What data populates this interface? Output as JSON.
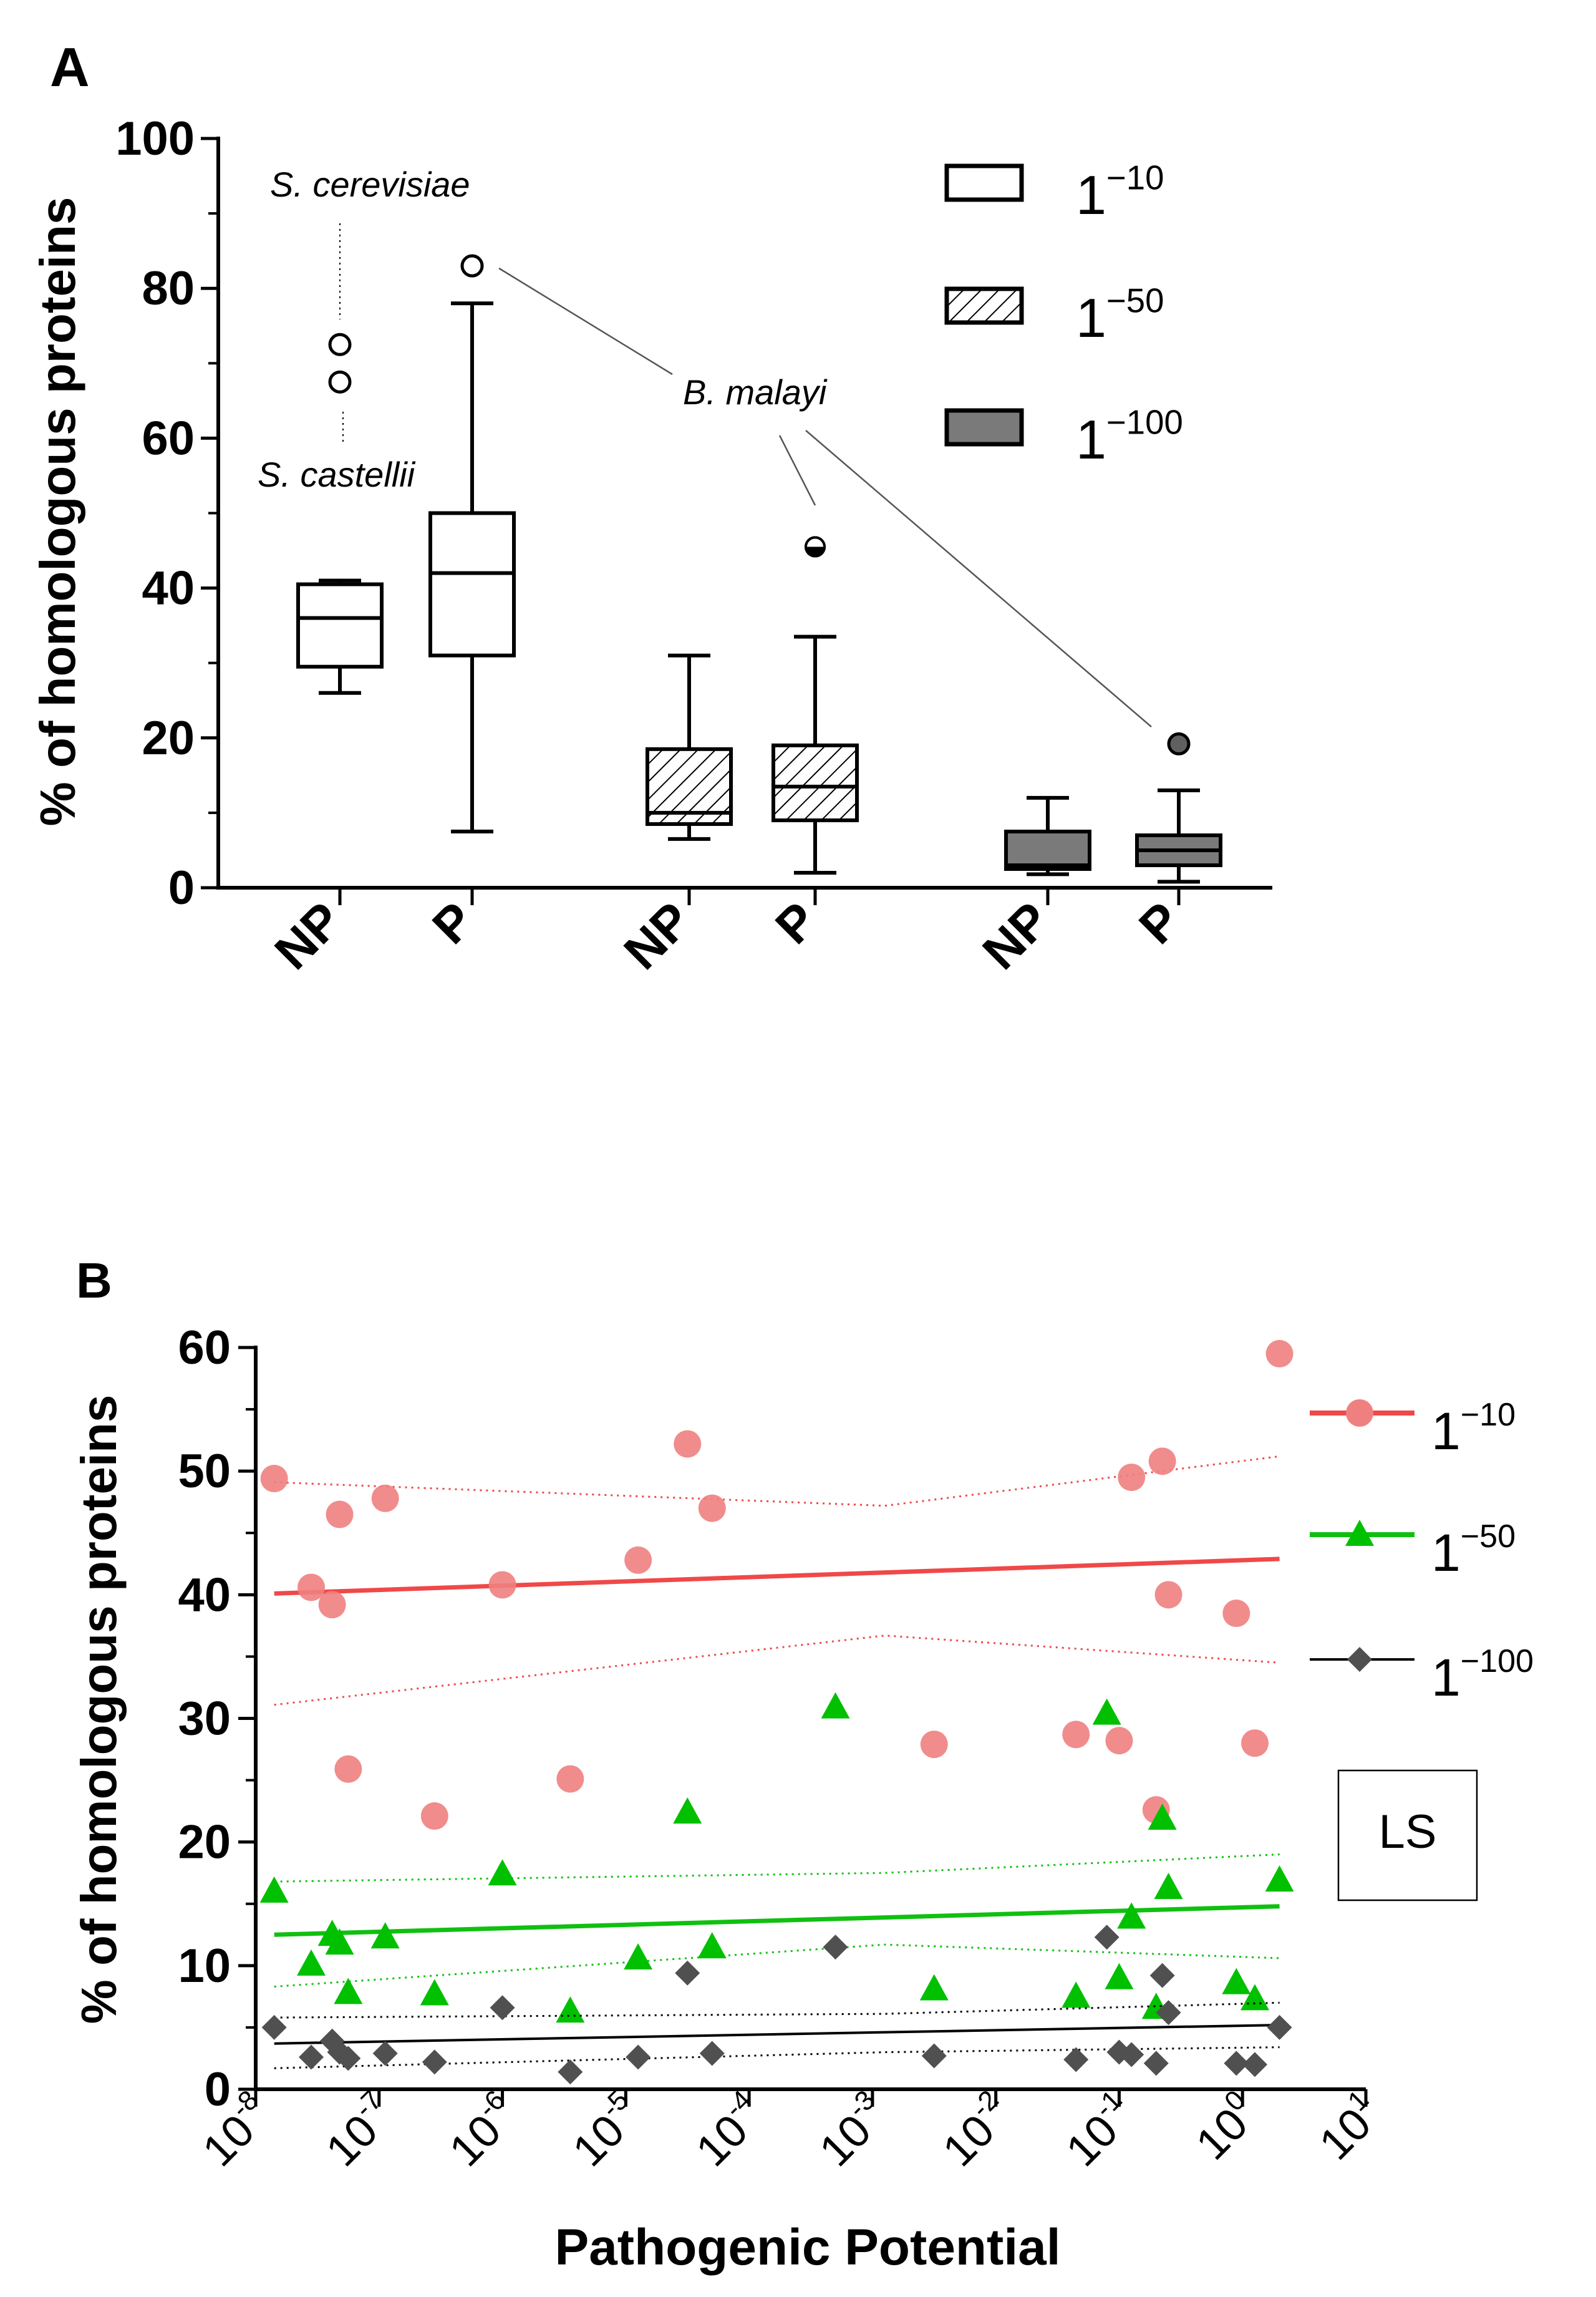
{
  "chart_data": [
    {
      "panel": "A",
      "type": "box",
      "ylabel": "% of homologous proteins",
      "ylim": [
        0,
        100
      ],
      "yticks": [
        "0",
        "20",
        "40",
        "60",
        "80",
        "100"
      ],
      "categories": [
        "NP",
        "P",
        "NP",
        "P",
        "NP",
        "P"
      ],
      "legend": [
        {
          "base": "1",
          "exp": "−10",
          "fill": "white"
        },
        {
          "base": "1",
          "exp": "−50",
          "fill": "hatched"
        },
        {
          "base": "1",
          "exp": "−100",
          "fill": "gray"
        }
      ],
      "boxes": [
        {
          "group": "NP",
          "threshold": "1^-10",
          "min": 26,
          "q1": 29.5,
          "median": 36,
          "q3": 40.5,
          "max": 41
        },
        {
          "group": "P",
          "threshold": "1^-10",
          "min": 7.5,
          "q1": 31,
          "median": 42,
          "q3": 50,
          "max": 78
        },
        {
          "group": "NP",
          "threshold": "1^-50",
          "min": 6.5,
          "q1": 8.5,
          "median": 10,
          "q3": 18.5,
          "max": 31
        },
        {
          "group": "P",
          "threshold": "1^-50",
          "min": 2,
          "q1": 9,
          "median": 13.5,
          "q3": 19,
          "max": 33.5
        },
        {
          "group": "NP",
          "threshold": "1^-100",
          "min": 1.8,
          "q1": 2.5,
          "median": 3,
          "q3": 7.5,
          "max": 12
        },
        {
          "group": "P",
          "threshold": "1^-100",
          "min": 0.8,
          "q1": 3,
          "median": 5,
          "q3": 7,
          "max": 13
        }
      ],
      "outliers": [
        {
          "box": 0,
          "value": 72.5,
          "style": "open"
        },
        {
          "box": 0,
          "value": 67.5,
          "style": "open"
        },
        {
          "box": 1,
          "value": 83,
          "style": "open"
        },
        {
          "box": 3,
          "value": 45.5,
          "style": "half"
        },
        {
          "box": 5,
          "value": 19.2,
          "style": "filled"
        }
      ],
      "annotations": [
        "S. cerevisiae",
        "S. castellii",
        "B. malayi"
      ]
    },
    {
      "panel": "B",
      "type": "scatter",
      "xscale": "log",
      "xlabel": "Pathogenic Potential",
      "ylabel": "% of homologous proteins",
      "ylim": [
        0,
        60
      ],
      "xlim_exp": [
        -8,
        1
      ],
      "yticks": [
        "0",
        "10",
        "20",
        "30",
        "40",
        "50",
        "60"
      ],
      "xticks": [
        {
          "base": "10",
          "exp": "-8"
        },
        {
          "base": "10",
          "exp": "-7"
        },
        {
          "base": "10",
          "exp": "-6"
        },
        {
          "base": "10",
          "exp": "-5"
        },
        {
          "base": "10",
          "exp": "-4"
        },
        {
          "base": "10",
          "exp": "-3"
        },
        {
          "base": "10",
          "exp": "-2"
        },
        {
          "base": "10",
          "exp": "-1"
        },
        {
          "base": "10",
          "exp": "0"
        },
        {
          "base": "10",
          "exp": "1"
        }
      ],
      "box_label": "LS",
      "series": [
        {
          "name": "1^-10",
          "base": "1",
          "exp": "−10",
          "marker": "circle",
          "color": "#f08080",
          "line_color": "#f04848",
          "points_log10x": [
            [
              -7.85,
              49.4
            ],
            [
              -7.55,
              40.6
            ],
            [
              -7.38,
              39.2
            ],
            [
              -7.32,
              46.5
            ],
            [
              -7.25,
              25.9
            ],
            [
              -6.95,
              47.8
            ],
            [
              -6.55,
              22.1
            ],
            [
              -6.0,
              40.8
            ],
            [
              -5.45,
              25.1
            ],
            [
              -4.9,
              42.8
            ],
            [
              -4.5,
              52.2
            ],
            [
              -4.3,
              47.0
            ],
            [
              -2.5,
              27.9
            ],
            [
              -1.35,
              28.7
            ],
            [
              -1.0,
              28.2
            ],
            [
              -0.9,
              49.5
            ],
            [
              -0.7,
              22.6
            ],
            [
              -0.65,
              50.8
            ],
            [
              -0.6,
              40.0
            ],
            [
              -0.05,
              38.5
            ],
            [
              0.1,
              28.0
            ],
            [
              0.3,
              59.5
            ]
          ],
          "fit": [
            [
              -7.85,
              40.1
            ],
            [
              0.3,
              42.9
            ]
          ],
          "ci_upper": [
            [
              -7.85,
              49.1
            ],
            [
              -2.9,
              47.2
            ],
            [
              0.3,
              51.2
            ]
          ],
          "ci_lower": [
            [
              -7.85,
              31.1
            ],
            [
              -2.9,
              36.7
            ],
            [
              0.3,
              34.5
            ]
          ]
        },
        {
          "name": "1^-50",
          "base": "1",
          "exp": "−50",
          "marker": "triangle",
          "color": "#00c000",
          "line_color": "#10c010",
          "points_log10x": [
            [
              -7.85,
              16.0
            ],
            [
              -7.55,
              10.1
            ],
            [
              -7.38,
              12.5
            ],
            [
              -7.32,
              11.8
            ],
            [
              -7.25,
              7.8
            ],
            [
              -6.95,
              12.3
            ],
            [
              -6.55,
              7.7
            ],
            [
              -6.0,
              17.4
            ],
            [
              -5.45,
              6.3
            ],
            [
              -4.9,
              10.6
            ],
            [
              -4.5,
              22.4
            ],
            [
              -4.3,
              11.5
            ],
            [
              -3.3,
              30.9
            ],
            [
              -2.5,
              8.1
            ],
            [
              -1.35,
              7.5
            ],
            [
              -1.1,
              30.4
            ],
            [
              -1.0,
              9.0
            ],
            [
              -0.9,
              13.9
            ],
            [
              -0.7,
              6.6
            ],
            [
              -0.65,
              21.9
            ],
            [
              -0.6,
              16.3
            ],
            [
              -0.05,
              8.6
            ],
            [
              0.1,
              7.3
            ],
            [
              0.3,
              16.9
            ]
          ],
          "fit": [
            [
              -7.85,
              12.5
            ],
            [
              0.3,
              14.8
            ]
          ],
          "ci_upper": [
            [
              -7.85,
              16.8
            ],
            [
              -2.9,
              17.5
            ],
            [
              0.3,
              19.0
            ]
          ],
          "ci_lower": [
            [
              -7.85,
              8.3
            ],
            [
              -2.9,
              11.7
            ],
            [
              0.3,
              10.6
            ]
          ]
        },
        {
          "name": "1^-100",
          "base": "1",
          "exp": "−100",
          "marker": "diamond",
          "color": "#505050",
          "line_color": "#000000",
          "points_log10x": [
            [
              -7.85,
              5.0
            ],
            [
              -7.55,
              2.6
            ],
            [
              -7.38,
              3.9
            ],
            [
              -7.32,
              3.0
            ],
            [
              -7.25,
              2.5
            ],
            [
              -6.95,
              2.9
            ],
            [
              -6.55,
              2.2
            ],
            [
              -6.0,
              6.6
            ],
            [
              -5.45,
              1.4
            ],
            [
              -4.9,
              2.6
            ],
            [
              -4.5,
              9.4
            ],
            [
              -4.3,
              2.9
            ],
            [
              -3.3,
              11.5
            ],
            [
              -2.5,
              2.7
            ],
            [
              -1.35,
              2.4
            ],
            [
              -1.1,
              12.3
            ],
            [
              -1.0,
              3.0
            ],
            [
              -0.9,
              2.8
            ],
            [
              -0.7,
              2.1
            ],
            [
              -0.65,
              9.2
            ],
            [
              -0.6,
              6.2
            ],
            [
              -0.05,
              2.1
            ],
            [
              0.1,
              2.0
            ],
            [
              0.3,
              5.0
            ]
          ],
          "fit": [
            [
              -7.85,
              3.7
            ],
            [
              0.3,
              5.2
            ]
          ],
          "ci_upper": [
            [
              -7.85,
              5.8
            ],
            [
              -2.9,
              6.1
            ],
            [
              0.3,
              7.0
            ]
          ],
          "ci_lower": [
            [
              -7.85,
              1.7
            ],
            [
              -2.9,
              3.0
            ],
            [
              0.3,
              3.4
            ]
          ]
        }
      ]
    }
  ],
  "panelA": {
    "letter": "A",
    "ylabel": "% of homologous proteins",
    "note_cerevisiae": "S. cerevisiae",
    "note_castellii": "S. castellii",
    "note_malayi": "B. malayi"
  },
  "panelB": {
    "letter": "B",
    "ylabel": "% of homologous proteins",
    "xlabel": "Pathogenic Potential",
    "box_label": "LS"
  }
}
